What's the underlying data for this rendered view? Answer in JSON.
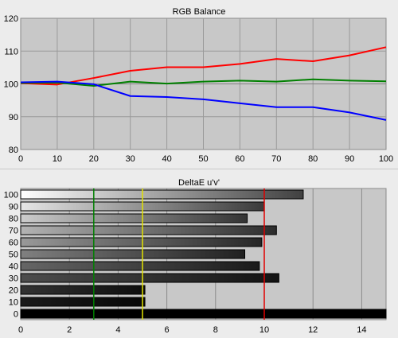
{
  "chart_data": [
    {
      "type": "line",
      "title": "RGB Balance",
      "xlabel": "",
      "ylabel": "",
      "x": [
        0,
        10,
        20,
        30,
        40,
        50,
        60,
        70,
        80,
        90,
        100
      ],
      "xlim": [
        0,
        100
      ],
      "ylim": [
        80,
        120
      ],
      "xticks": [
        "0",
        "10",
        "20",
        "30",
        "40",
        "50",
        "60",
        "70",
        "80",
        "90",
        "100"
      ],
      "yticks": [
        "80",
        "90",
        "100",
        "110",
        "120"
      ],
      "grid": true,
      "series": [
        {
          "color": "#ff0000",
          "values": [
            100.2,
            99.8,
            101.8,
            104.0,
            105.1,
            105.1,
            106.1,
            107.6,
            106.9,
            108.7,
            111.2
          ]
        },
        {
          "color": "#008000",
          "values": [
            100.3,
            100.4,
            99.4,
            100.7,
            100.1,
            100.7,
            101.0,
            100.7,
            101.4,
            101.0,
            100.8
          ]
        },
        {
          "color": "#0000ff",
          "values": [
            100.5,
            100.7,
            99.9,
            96.3,
            96.0,
            95.3,
            94.1,
            92.9,
            92.9,
            91.3,
            89.0
          ]
        }
      ],
      "reference_line": {
        "y": 100,
        "color": "#808080"
      }
    },
    {
      "type": "bar",
      "orientation": "horizontal",
      "title": "DeltaE u'v'",
      "xlabel": "",
      "ylabel": "",
      "categories": [
        "0",
        "10",
        "20",
        "30",
        "40",
        "50",
        "60",
        "70",
        "80",
        "90",
        "100"
      ],
      "values": [
        15.0,
        5.1,
        5.1,
        10.6,
        9.8,
        9.2,
        9.9,
        10.5,
        9.3,
        10.0,
        11.6
      ],
      "xlim": [
        0,
        15
      ],
      "xticks": [
        "0",
        "2",
        "4",
        "6",
        "8",
        "10",
        "12",
        "14"
      ],
      "grid": true,
      "threshold_lines": [
        {
          "x": 3,
          "color": "#008000"
        },
        {
          "x": 5,
          "color": "#e0e000"
        },
        {
          "x": 10,
          "color": "#e00000"
        }
      ]
    }
  ]
}
